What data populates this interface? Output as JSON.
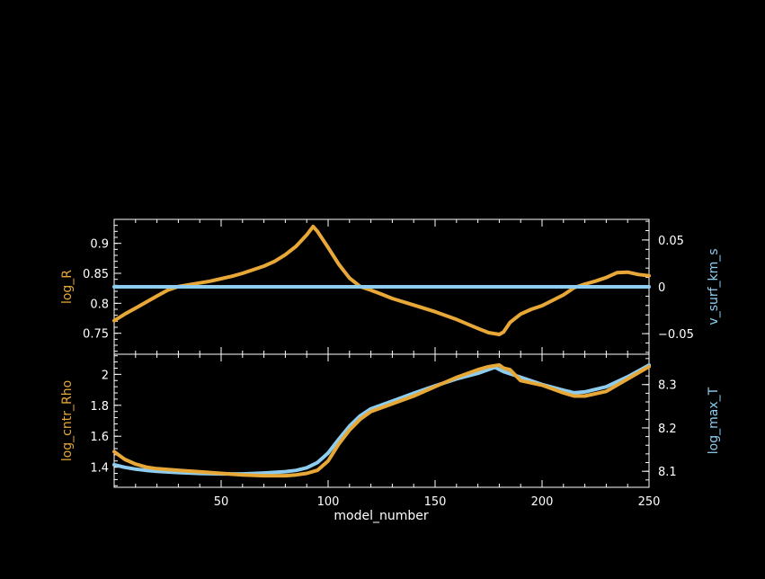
{
  "colors": {
    "background": "#000000",
    "axes": "#ffffff",
    "orange": "#e8a838",
    "blue": "#8ecdf0"
  },
  "chart_data": [
    {
      "type": "line",
      "panel": "top",
      "xlim": [
        0,
        250
      ],
      "y_left": {
        "label": "log_R",
        "lim": [
          0.715,
          0.94
        ],
        "ticks": [
          0.75,
          0.8,
          0.85,
          0.9
        ],
        "tick_labels": [
          "0.75",
          "0.8",
          "0.85",
          "0.9"
        ],
        "color": "#e8a838"
      },
      "y_right": {
        "label": "v_surf_km_s",
        "lim": [
          -0.072,
          0.072
        ],
        "ticks": [
          -0.05,
          0,
          0.05
        ],
        "tick_labels": [
          "−0.05",
          "0",
          "0.05"
        ],
        "color": "#8ecdf0"
      },
      "series": [
        {
          "axis": "left",
          "color": "#e8a838",
          "x": [
            0,
            5,
            10,
            15,
            20,
            25,
            30,
            35,
            40,
            45,
            50,
            55,
            60,
            65,
            70,
            75,
            80,
            85,
            90,
            93,
            95,
            100,
            105,
            110,
            115,
            120,
            125,
            130,
            140,
            150,
            160,
            170,
            175,
            180,
            182,
            185,
            190,
            195,
            200,
            205,
            210,
            215,
            220,
            225,
            230,
            235,
            240,
            245,
            250
          ],
          "y": [
            0.771,
            0.782,
            0.792,
            0.802,
            0.812,
            0.822,
            0.828,
            0.831,
            0.834,
            0.837,
            0.841,
            0.845,
            0.85,
            0.856,
            0.862,
            0.87,
            0.881,
            0.895,
            0.914,
            0.928,
            0.92,
            0.893,
            0.865,
            0.842,
            0.828,
            0.822,
            0.815,
            0.808,
            0.797,
            0.786,
            0.773,
            0.758,
            0.751,
            0.748,
            0.752,
            0.768,
            0.782,
            0.79,
            0.796,
            0.805,
            0.814,
            0.826,
            0.832,
            0.837,
            0.843,
            0.851,
            0.852,
            0.848,
            0.846
          ]
        },
        {
          "axis": "right",
          "color": "#8ecdf0",
          "x": [
            0,
            250
          ],
          "y": [
            0,
            0
          ]
        }
      ]
    },
    {
      "type": "line",
      "panel": "bottom",
      "xlabel": "model_number",
      "xlim": [
        0,
        250
      ],
      "x_ticks": [
        50,
        100,
        150,
        200,
        250
      ],
      "x_tick_labels": [
        "50",
        "100",
        "150",
        "200",
        "250"
      ],
      "y_left": {
        "label": "log_cntr_Rho",
        "lim": [
          1.27,
          2.13
        ],
        "ticks": [
          1.4,
          1.6,
          1.8,
          2.0
        ],
        "tick_labels": [
          "1.4",
          "1.6",
          "1.8",
          "2"
        ],
        "color": "#e8a838"
      },
      "y_right": {
        "label": "log_max_T",
        "lim": [
          8.063,
          8.37
        ],
        "ticks": [
          8.1,
          8.2,
          8.3
        ],
        "tick_labels": [
          "8.1",
          "8.2",
          "8.3"
        ],
        "color": "#8ecdf0"
      },
      "series": [
        {
          "axis": "right",
          "color": "#8ecdf0",
          "x": [
            0,
            5,
            10,
            15,
            20,
            30,
            40,
            50,
            60,
            70,
            80,
            85,
            90,
            95,
            100,
            105,
            110,
            115,
            120,
            130,
            140,
            150,
            160,
            170,
            178,
            182,
            190,
            200,
            210,
            215,
            220,
            230,
            240,
            250
          ],
          "y": [
            8.115,
            8.109,
            8.105,
            8.102,
            8.1,
            8.097,
            8.095,
            8.094,
            8.094,
            8.096,
            8.099,
            8.102,
            8.108,
            8.12,
            8.142,
            8.174,
            8.204,
            8.228,
            8.244,
            8.262,
            8.28,
            8.297,
            8.313,
            8.326,
            8.34,
            8.33,
            8.317,
            8.3,
            8.287,
            8.281,
            8.283,
            8.295,
            8.318,
            8.345
          ]
        },
        {
          "axis": "left",
          "color": "#e8a838",
          "x": [
            0,
            5,
            10,
            15,
            20,
            30,
            40,
            50,
            60,
            70,
            80,
            85,
            90,
            95,
            100,
            105,
            110,
            115,
            120,
            130,
            140,
            150,
            160,
            170,
            175,
            180,
            182,
            185,
            190,
            200,
            210,
            215,
            220,
            230,
            240,
            250
          ],
          "y": [
            1.5,
            1.45,
            1.42,
            1.4,
            1.39,
            1.38,
            1.37,
            1.36,
            1.35,
            1.345,
            1.345,
            1.35,
            1.36,
            1.38,
            1.44,
            1.55,
            1.64,
            1.71,
            1.76,
            1.81,
            1.86,
            1.92,
            1.98,
            2.03,
            2.05,
            2.06,
            2.04,
            2.03,
            1.96,
            1.93,
            1.88,
            1.86,
            1.86,
            1.89,
            1.97,
            2.05
          ]
        }
      ]
    }
  ]
}
